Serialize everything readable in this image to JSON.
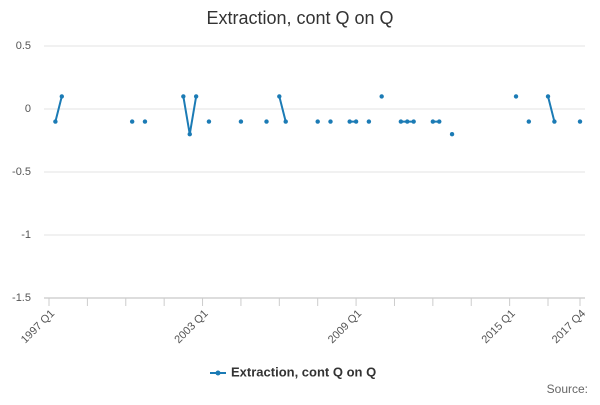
{
  "chart_data": {
    "type": "line",
    "title": "Extraction, cont Q on Q",
    "categories": [
      "1997 Q1",
      null,
      null,
      null,
      null,
      null,
      null,
      null,
      null,
      null,
      null,
      null,
      null,
      null,
      null,
      null,
      null,
      null,
      null,
      null,
      null,
      null,
      null,
      null,
      "2003 Q1",
      null,
      null,
      null,
      null,
      null,
      null,
      null,
      null,
      null,
      null,
      null,
      null,
      null,
      null,
      null,
      null,
      null,
      null,
      null,
      null,
      null,
      null,
      null,
      "2009 Q1",
      null,
      null,
      null,
      null,
      null,
      null,
      null,
      null,
      null,
      null,
      null,
      null,
      null,
      null,
      null,
      null,
      null,
      null,
      null,
      null,
      null,
      null,
      null,
      "2015 Q1",
      null,
      null,
      null,
      null,
      null,
      null,
      null,
      null,
      null,
      null,
      "2017 Q4"
    ],
    "series": [
      {
        "name": "Extraction, cont Q on Q",
        "color": "#1b7bb5",
        "values": [
          null,
          -0.1,
          0.1,
          null,
          null,
          null,
          null,
          null,
          null,
          null,
          null,
          null,
          null,
          -0.1,
          null,
          -0.1,
          null,
          null,
          null,
          null,
          null,
          0.1,
          -0.2,
          0.1,
          null,
          -0.1,
          null,
          null,
          null,
          null,
          -0.1,
          null,
          null,
          null,
          -0.1,
          null,
          0.1,
          -0.1,
          null,
          null,
          null,
          null,
          -0.1,
          null,
          -0.1,
          null,
          null,
          -0.1,
          -0.1,
          null,
          -0.1,
          null,
          0.1,
          null,
          null,
          -0.1,
          -0.1,
          -0.1,
          null,
          null,
          -0.1,
          -0.1,
          null,
          -0.2,
          null,
          null,
          null,
          null,
          null,
          null,
          null,
          null,
          null,
          0.1,
          null,
          -0.1,
          null,
          null,
          0.1,
          -0.1,
          null,
          null,
          null,
          -0.1
        ]
      }
    ],
    "ylim": [
      -1.5,
      0.5
    ],
    "yticks": [
      0.5,
      0,
      -0.5,
      -1,
      -1.5
    ],
    "grid": true,
    "legend": "bottom",
    "source": "Source:"
  }
}
